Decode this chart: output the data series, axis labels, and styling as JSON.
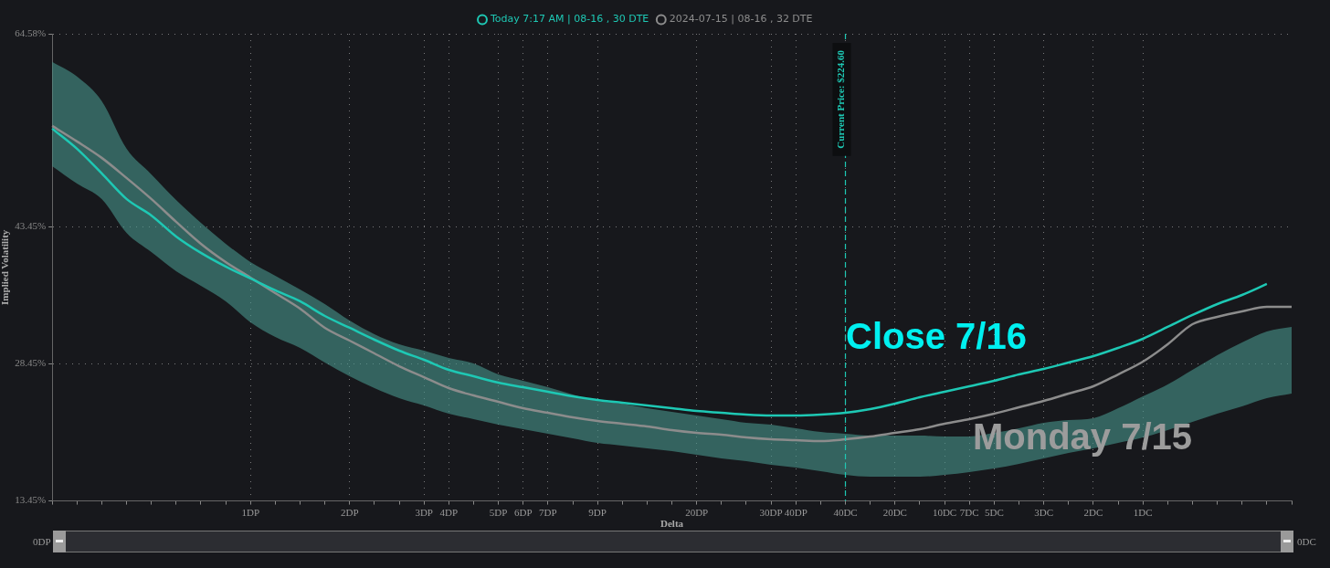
{
  "chart_data": {
    "type": "line",
    "xlabel": "Delta",
    "ylabel": "Implied Volatility",
    "categories": [
      null,
      null,
      null,
      null,
      null,
      null,
      null,
      null,
      "1DP",
      null,
      null,
      null,
      "2DP",
      null,
      null,
      "3DP",
      "4DP",
      null,
      "5DP",
      "6DP",
      "7DP",
      null,
      "9DP",
      null,
      null,
      null,
      "20DP",
      null,
      null,
      "30DP",
      "40DP",
      null,
      "40DC",
      null,
      "20DC",
      null,
      "10DC",
      "7DC",
      "5DC",
      null,
      "3DC",
      null,
      "2DC",
      null,
      "1DC",
      null,
      null,
      null,
      null,
      null,
      null
    ],
    "ylim": [
      13.45,
      64.58
    ],
    "yticks": [
      {
        "value": 13.45,
        "label": "13.45%"
      },
      {
        "value": 28.45,
        "label": "28.45%"
      },
      {
        "value": 43.45,
        "label": "43.45%"
      },
      {
        "value": 64.58,
        "label": "64.58%"
      }
    ],
    "grid": true,
    "legend": "top",
    "marker": "none",
    "line_style": "solid",
    "series": [
      {
        "name": "Today 7:17 AM | 08-16 , 30 DTE",
        "color": "#1ec8b4",
        "values": [
          54.2,
          52.0,
          49.3,
          46.5,
          44.7,
          42.4,
          40.6,
          39.1,
          37.8,
          36.5,
          35.3,
          33.7,
          32.4,
          31.1,
          29.9,
          28.9,
          27.8,
          27.1,
          26.4,
          25.9,
          25.4,
          24.9,
          24.5,
          24.2,
          23.9,
          23.6,
          23.3,
          23.1,
          22.9,
          22.8,
          22.8,
          22.9,
          23.1,
          23.5,
          24.1,
          24.8,
          25.4,
          26.0,
          26.6,
          27.3,
          27.9,
          28.6,
          29.3,
          30.2,
          31.2,
          32.5,
          33.8,
          35.0,
          36.0,
          37.2,
          null
        ],
        "upper": [
          61.5,
          59.9,
          57.2,
          52.0,
          49.2,
          46.4,
          43.9,
          41.6,
          39.6,
          38.1,
          36.6,
          35.0,
          33.2,
          31.7,
          30.6,
          29.9,
          29.1,
          28.5,
          27.3,
          26.6,
          25.9,
          25.1,
          24.4,
          24.1,
          23.6,
          23.2,
          22.8,
          22.4,
          22.0,
          21.8,
          21.4,
          21.0,
          20.8,
          20.6,
          20.6,
          20.6,
          20.5,
          20.5,
          20.9,
          21.4,
          22.0,
          22.3,
          22.5,
          23.6,
          24.9,
          26.2,
          27.8,
          29.4,
          30.8,
          32.0,
          32.5
        ],
        "lower": [
          50.1,
          48.2,
          46.5,
          42.8,
          40.7,
          38.6,
          37.0,
          35.3,
          33.0,
          31.4,
          30.2,
          28.6,
          27.1,
          25.8,
          24.7,
          23.9,
          23.0,
          22.4,
          21.8,
          21.3,
          20.8,
          20.3,
          19.8,
          19.5,
          19.2,
          18.9,
          18.5,
          18.1,
          17.8,
          17.4,
          17.1,
          16.7,
          16.3,
          16.1,
          16.1,
          16.1,
          16.3,
          16.6,
          17.0,
          17.5,
          18.1,
          18.7,
          19.2,
          19.8,
          20.4,
          21.2,
          22.1,
          23.0,
          23.8,
          24.7,
          25.2
        ]
      },
      {
        "name": "2024-07-15 | 08-16 , 32 DTE",
        "color": "#8c8c8c",
        "values": [
          54.5,
          52.8,
          51.0,
          48.8,
          46.5,
          44.0,
          41.6,
          39.6,
          37.9,
          36.2,
          34.5,
          32.4,
          31.0,
          29.6,
          28.2,
          27.0,
          25.8,
          25.0,
          24.3,
          23.6,
          23.1,
          22.6,
          22.2,
          21.9,
          21.6,
          21.2,
          20.9,
          20.7,
          20.4,
          20.2,
          20.1,
          20.0,
          20.2,
          20.5,
          20.9,
          21.3,
          21.9,
          22.4,
          23.0,
          23.7,
          24.4,
          25.2,
          26.0,
          27.3,
          28.7,
          30.6,
          32.8,
          33.6,
          34.2,
          34.7,
          34.7
        ]
      }
    ],
    "ref_lines": [
      {
        "axis": "x",
        "value": "40DC",
        "label": "Current Price: $224.60",
        "color": "#1ec8b4",
        "line_style": "dashed"
      }
    ],
    "annotations": [
      "Close 7/16",
      "Monday 7/15",
      "0DP",
      "0DC"
    ]
  }
}
